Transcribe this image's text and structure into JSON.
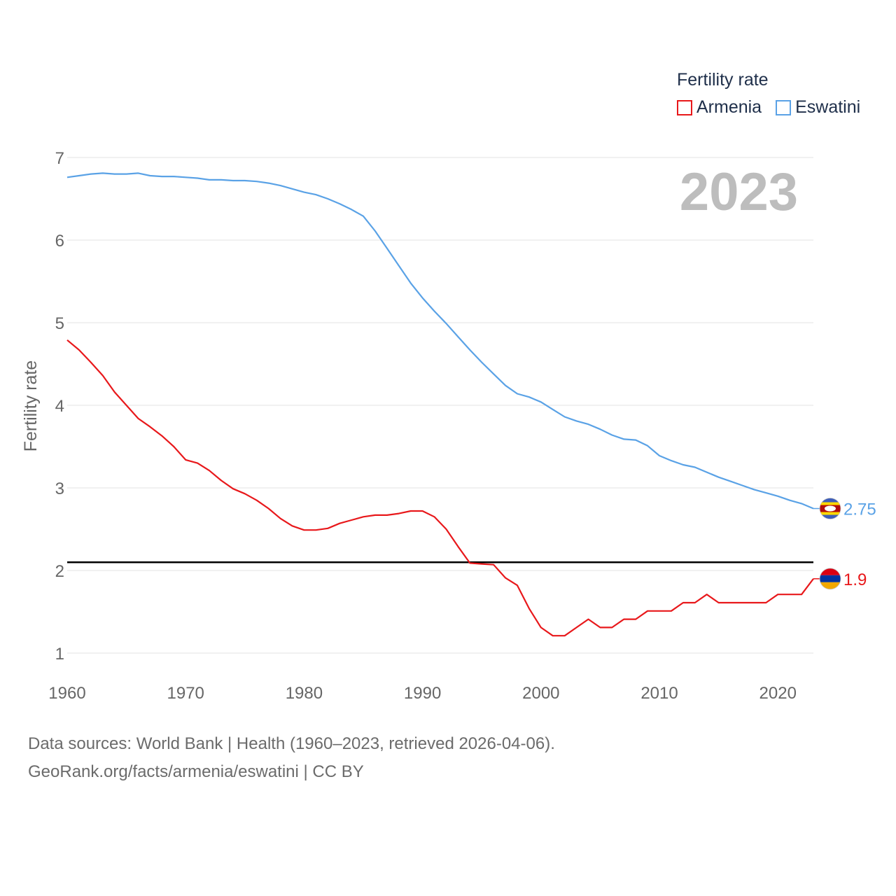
{
  "legend": {
    "title": "Fertility rate",
    "items": [
      {
        "label": "Armenia",
        "color": "#e8181b"
      },
      {
        "label": "Eswatini",
        "color": "#5aa2e6"
      }
    ]
  },
  "year_watermark": "2023",
  "footer": {
    "line1": "Data sources: World Bank | Health (1960–2023, retrieved 2026-04-06).",
    "line2": "GeoRank.org/facts/armenia/eswatini | CC BY"
  },
  "chart_data": {
    "type": "line",
    "title": "Fertility rate",
    "xlabel": "",
    "ylabel": "Fertility rate",
    "xlim": [
      1960,
      2023
    ],
    "ylim": [
      1,
      7
    ],
    "x_ticks": [
      1960,
      1970,
      1980,
      1990,
      2000,
      2010,
      2020
    ],
    "y_ticks": [
      1,
      2,
      3,
      4,
      5,
      6,
      7
    ],
    "grid": true,
    "reference_line": {
      "y": 2.1,
      "color": "#000000"
    },
    "x": [
      1960,
      1961,
      1962,
      1963,
      1964,
      1965,
      1966,
      1967,
      1968,
      1969,
      1970,
      1971,
      1972,
      1973,
      1974,
      1975,
      1976,
      1977,
      1978,
      1979,
      1980,
      1981,
      1982,
      1983,
      1984,
      1985,
      1986,
      1987,
      1988,
      1989,
      1990,
      1991,
      1992,
      1993,
      1994,
      1995,
      1996,
      1997,
      1998,
      1999,
      2000,
      2001,
      2002,
      2003,
      2004,
      2005,
      2006,
      2007,
      2008,
      2009,
      2010,
      2011,
      2012,
      2013,
      2014,
      2015,
      2016,
      2017,
      2018,
      2019,
      2020,
      2021,
      2022,
      2023
    ],
    "series": [
      {
        "name": "Armenia",
        "color": "#e8181b",
        "end_label": "1.9",
        "values": [
          4.79,
          4.67,
          4.52,
          4.36,
          4.16,
          4.0,
          3.84,
          3.74,
          3.63,
          3.5,
          3.34,
          3.3,
          3.21,
          3.09,
          2.99,
          2.93,
          2.85,
          2.75,
          2.63,
          2.54,
          2.49,
          2.49,
          2.51,
          2.57,
          2.61,
          2.65,
          2.67,
          2.67,
          2.69,
          2.72,
          2.72,
          2.65,
          2.5,
          2.29,
          2.09,
          2.08,
          2.07,
          1.91,
          1.82,
          1.54,
          1.31,
          1.21,
          1.21,
          1.31,
          1.41,
          1.31,
          1.31,
          1.41,
          1.41,
          1.51,
          1.51,
          1.51,
          1.61,
          1.61,
          1.71,
          1.61,
          1.61,
          1.61,
          1.61,
          1.61,
          1.71,
          1.71,
          1.71,
          1.9
        ]
      },
      {
        "name": "Eswatini",
        "color": "#5aa2e6",
        "end_label": "2.75",
        "values": [
          6.76,
          6.78,
          6.8,
          6.81,
          6.8,
          6.8,
          6.81,
          6.78,
          6.77,
          6.77,
          6.76,
          6.75,
          6.73,
          6.73,
          6.72,
          6.72,
          6.71,
          6.69,
          6.66,
          6.62,
          6.58,
          6.55,
          6.5,
          6.44,
          6.37,
          6.29,
          6.11,
          5.9,
          5.69,
          5.48,
          5.3,
          5.14,
          4.99,
          4.83,
          4.67,
          4.52,
          4.38,
          4.24,
          4.14,
          4.1,
          4.04,
          3.95,
          3.86,
          3.81,
          3.77,
          3.71,
          3.64,
          3.59,
          3.58,
          3.51,
          3.39,
          3.33,
          3.28,
          3.25,
          3.19,
          3.13,
          3.08,
          3.03,
          2.98,
          2.94,
          2.9,
          2.85,
          2.81,
          2.75
        ]
      }
    ]
  }
}
